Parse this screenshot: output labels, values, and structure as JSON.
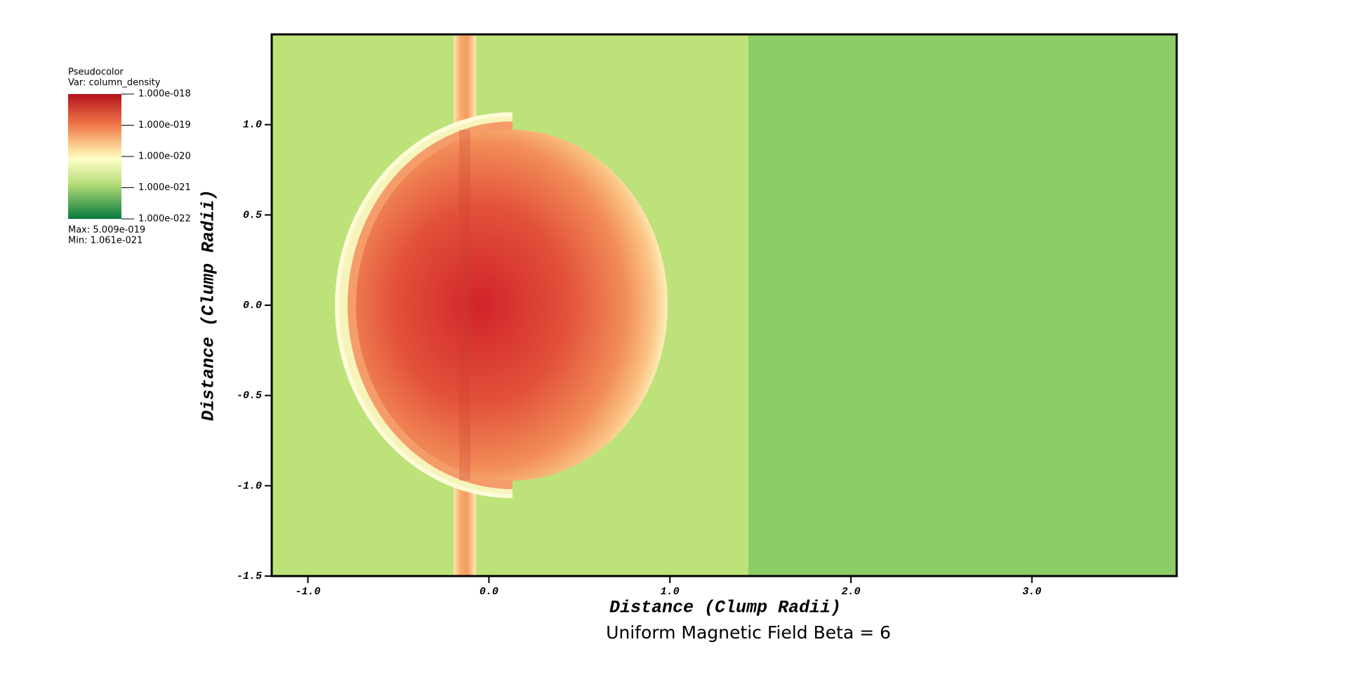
{
  "chart_data": {
    "type": "heatmap",
    "title": "Uniform Magnetic Field Beta = 6",
    "x_label": "Distance (Clump Radii)",
    "y_label": "Distance (Clump Radii)",
    "xlim": [
      -1.2,
      3.8
    ],
    "ylim": [
      -1.5,
      1.5
    ],
    "xticks": [
      {
        "value": -1,
        "label": "-1.0"
      },
      {
        "value": 0,
        "label": "0.0"
      },
      {
        "value": 1,
        "label": "1.0"
      },
      {
        "value": 2,
        "label": "2.0"
      },
      {
        "value": 3,
        "label": "3.0"
      }
    ],
    "yticks": [
      {
        "value": -1.5,
        "label": "-1.5"
      },
      {
        "value": -1,
        "label": "-1.0"
      },
      {
        "value": -0.5,
        "label": "-0.5"
      },
      {
        "value": 0,
        "label": "0.0"
      },
      {
        "value": 0.5,
        "label": "0.5"
      },
      {
        "value": 1,
        "label": "1.0"
      }
    ],
    "colorbar": {
      "title": "Pseudocolor",
      "variable": "Var: column_density",
      "log": true,
      "lim": [
        1e-22,
        1e-18
      ],
      "ticks": [
        {
          "value": 1e-18,
          "label": "1.000e-018"
        },
        {
          "value": 1e-19,
          "label": "1.000e-019"
        },
        {
          "value": 1e-20,
          "label": "1.000e-020"
        },
        {
          "value": 1e-21,
          "label": "1.000e-021"
        },
        {
          "value": 1e-22,
          "label": "1.000e-022"
        }
      ],
      "max_text": "Max:  5.009e-019",
      "min_text": "Min:  1.061e-021"
    }
  }
}
